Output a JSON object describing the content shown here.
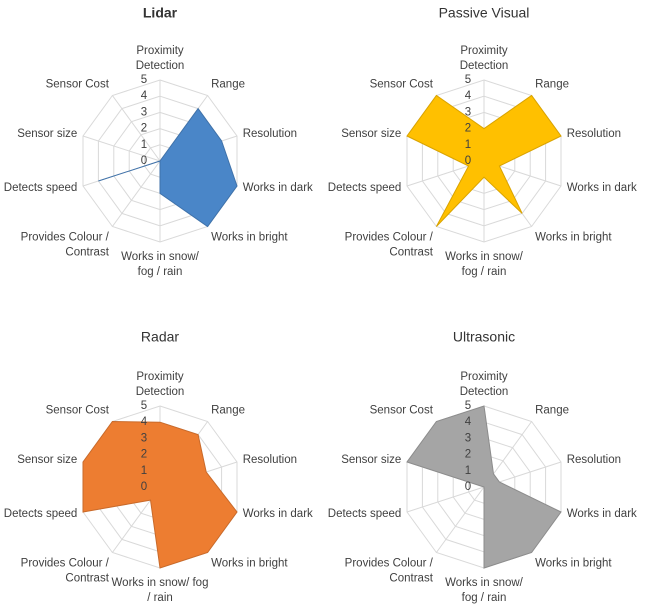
{
  "chart_data": [
    {
      "type": "radar",
      "title": "Lidar",
      "title_bold": true,
      "color": "#4a86c8",
      "rmax": 5,
      "ticks": [
        "0",
        "1",
        "2",
        "3",
        "4",
        "5"
      ],
      "categories": [
        [
          "Proximity",
          "Detection"
        ],
        [
          "Range"
        ],
        [
          "Resolution"
        ],
        [
          "Works in dark"
        ],
        [
          "Works in bright"
        ],
        [
          "Works in snow/",
          "fog / rain"
        ],
        [
          "Provides Colour /",
          "Contrast"
        ],
        [
          "Detects speed"
        ],
        [
          "Sensor size"
        ],
        [
          "Sensor Cost"
        ]
      ],
      "values": [
        0,
        4,
        4,
        5,
        5,
        2,
        0,
        4,
        0,
        0
      ]
    },
    {
      "type": "radar",
      "title": "Passive Visual",
      "title_bold": false,
      "color": "#ffc000",
      "rmax": 5,
      "ticks": [
        "0",
        "1",
        "2",
        "3",
        "4",
        "5"
      ],
      "categories": [
        [
          "Proximity",
          "Detection"
        ],
        [
          "Range"
        ],
        [
          "Resolution"
        ],
        [
          "Works in dark"
        ],
        [
          "Works in bright"
        ],
        [
          "Works in snow/",
          "fog / rain"
        ],
        [
          "Provides Colour /",
          "Contrast"
        ],
        [
          "Detects speed"
        ],
        [
          "Sensor size"
        ],
        [
          "Sensor Cost"
        ]
      ],
      "values": [
        2,
        5,
        5,
        1,
        4,
        1,
        5,
        1,
        5,
        5
      ]
    },
    {
      "type": "radar",
      "title": "Radar",
      "title_bold": false,
      "color": "#ed7d31",
      "rmax": 5,
      "ticks": [
        "0",
        "1",
        "2",
        "3",
        "4",
        "5"
      ],
      "categories": [
        [
          "Proximity",
          "Detection"
        ],
        [
          "Range"
        ],
        [
          "Resolution"
        ],
        [
          "Works in dark"
        ],
        [
          "Works in bright"
        ],
        [
          "Works in snow/ fog",
          "/ rain"
        ],
        [
          "Provides Colour /",
          "Contrast"
        ],
        [
          "Detects speed"
        ],
        [
          "Sensor size"
        ],
        [
          "Sensor Cost"
        ]
      ],
      "values": [
        4,
        4,
        3,
        5,
        5,
        5,
        1,
        5,
        5,
        5
      ]
    },
    {
      "type": "radar",
      "title": "Ultrasonic",
      "title_bold": false,
      "color": "#a5a5a5",
      "rmax": 5,
      "ticks": [
        "0",
        "1",
        "2",
        "3",
        "4",
        "5"
      ],
      "categories": [
        [
          "Proximity",
          "Detection"
        ],
        [
          "Range"
        ],
        [
          "Resolution"
        ],
        [
          "Works in dark"
        ],
        [
          "Works in bright"
        ],
        [
          "Works in snow/",
          "fog / rain"
        ],
        [
          "Provides Colour /",
          "Contrast"
        ],
        [
          "Detects speed"
        ],
        [
          "Sensor size"
        ],
        [
          "Sensor Cost"
        ]
      ],
      "values": [
        5,
        1,
        1,
        5,
        5,
        5,
        0,
        0,
        5,
        5
      ]
    }
  ]
}
